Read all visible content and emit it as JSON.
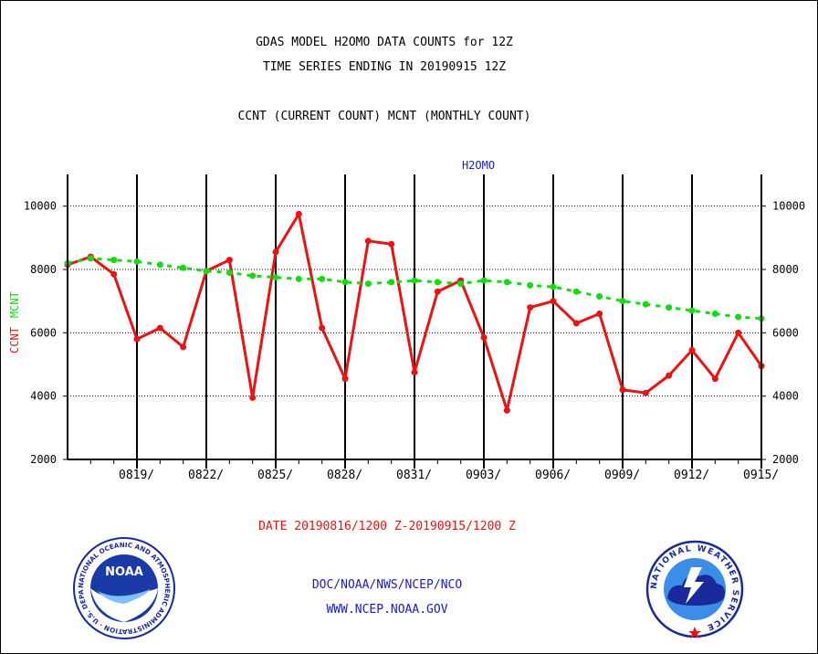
{
  "titles": {
    "line1": "GDAS MODEL H2OMO DATA COUNTS for 12Z",
    "line2": "TIME SERIES ENDING IN 20190915 12Z",
    "line3": "CCNT (CURRENT COUNT) MCNT (MONTHLY COUNT)"
  },
  "chart_data": {
    "type": "line",
    "title": "H2OMO",
    "xlabel": "DATE 20190816/1200 Z-20190915/1200 Z",
    "ylabel_left": [
      "CCNT",
      "MCNT"
    ],
    "ylim": [
      2000,
      11000
    ],
    "yticks": [
      2000,
      4000,
      6000,
      8000,
      10000
    ],
    "xticks": [
      "0819/",
      "0822/",
      "0825/",
      "0828/",
      "0831/",
      "0903/",
      "0906/",
      "0909/",
      "0912/",
      "0915/"
    ],
    "grid": true,
    "colors": {
      "CCNT": "#ee1111",
      "MCNT": "#11dd11",
      "title": "#1a1ad0"
    },
    "x": [
      "0816",
      "0817",
      "0818",
      "0819",
      "0820",
      "0821",
      "0822",
      "0823",
      "0824",
      "0825",
      "0826",
      "0827",
      "0828",
      "0829",
      "0830",
      "0831",
      "0901",
      "0902",
      "0903",
      "0904",
      "0905",
      "0906",
      "0907",
      "0908",
      "0909",
      "0910",
      "0911",
      "0912",
      "0913",
      "0914",
      "0915"
    ],
    "series": [
      {
        "name": "CCNT",
        "values": [
          8150,
          8400,
          7850,
          5800,
          6150,
          5550,
          7950,
          8300,
          3950,
          8550,
          9750,
          6150,
          4550,
          8900,
          8800,
          4750,
          7300,
          7650,
          5850,
          3550,
          6800,
          7000,
          6300,
          6600,
          4200,
          4100,
          4650,
          5450,
          4550,
          6000,
          4950
        ]
      },
      {
        "name": "MCNT",
        "values": [
          8200,
          8350,
          8300,
          8250,
          8150,
          8050,
          7950,
          7900,
          7800,
          7750,
          7700,
          7700,
          7600,
          7550,
          7600,
          7650,
          7600,
          7550,
          7650,
          7600,
          7500,
          7450,
          7300,
          7150,
          7000,
          6900,
          6800,
          6700,
          6600,
          6500,
          6450
        ]
      }
    ]
  },
  "footer": {
    "line1": "DOC/NOAA/NWS/NCEP/NCO",
    "line2": "WWW.NCEP.NOAA.GOV"
  },
  "logos": {
    "noaa_badge": "NOAA",
    "noaa_ring": "NATIONAL OCEANIC AND ATMOSPHERIC ADMINISTRATION · U.S. DEPARTMENT OF COMMERCE ·",
    "nws_ring": "NATIONAL WEATHER SERVICE"
  }
}
